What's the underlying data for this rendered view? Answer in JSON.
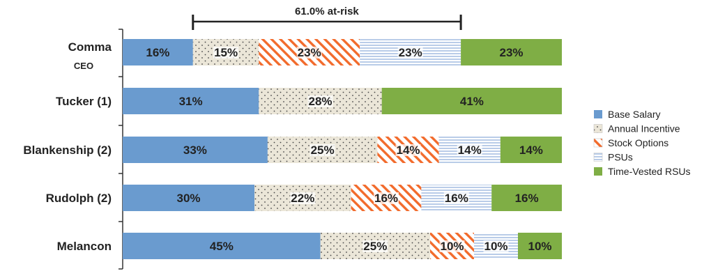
{
  "chart_data": {
    "type": "bar",
    "orientation": "horizontal",
    "stacked": true,
    "categories": [
      "Comma",
      "Tucker (1)",
      "Blankenship (2)",
      "Rudolph (2)",
      "Melancon"
    ],
    "category_sublabels": [
      "CEO",
      "",
      "",
      "",
      ""
    ],
    "series": [
      {
        "name": "Base Salary",
        "values": [
          16,
          31,
          33,
          30,
          45
        ],
        "labels": [
          "16%",
          "31%",
          "33%",
          "30%",
          "45%"
        ]
      },
      {
        "name": "Annual Incentive",
        "values": [
          15,
          28,
          25,
          22,
          25
        ],
        "labels": [
          "15%",
          "28%",
          "25%",
          "22%",
          "25%"
        ]
      },
      {
        "name": "Stock Options",
        "values": [
          23,
          0,
          14,
          16,
          10
        ],
        "labels": [
          "23%",
          "",
          "14%",
          "16%",
          "10%"
        ]
      },
      {
        "name": "PSUs",
        "values": [
          23,
          0,
          14,
          16,
          10
        ],
        "labels": [
          "23%",
          "",
          "14%",
          "16%",
          "10%"
        ]
      },
      {
        "name": "Time-Vested RSUs",
        "values": [
          23,
          41,
          14,
          16,
          10
        ],
        "labels": [
          "23%",
          "41%",
          "14%",
          "16%",
          "10%"
        ]
      }
    ],
    "series_colors": [
      "#6a9bcf",
      "#e9e4d6",
      "#f26b2c",
      "#c9d8ec",
      "#7fae45"
    ],
    "series_patterns": [
      "solid",
      "dots",
      "diagonal-stripes",
      "horizontal-stripes",
      "solid"
    ],
    "annotation": {
      "text": "61.0% at-risk",
      "from_percent": 16,
      "to_percent": 77
    },
    "legend_position": "right",
    "grid": false,
    "xlim": [
      0,
      100
    ]
  }
}
